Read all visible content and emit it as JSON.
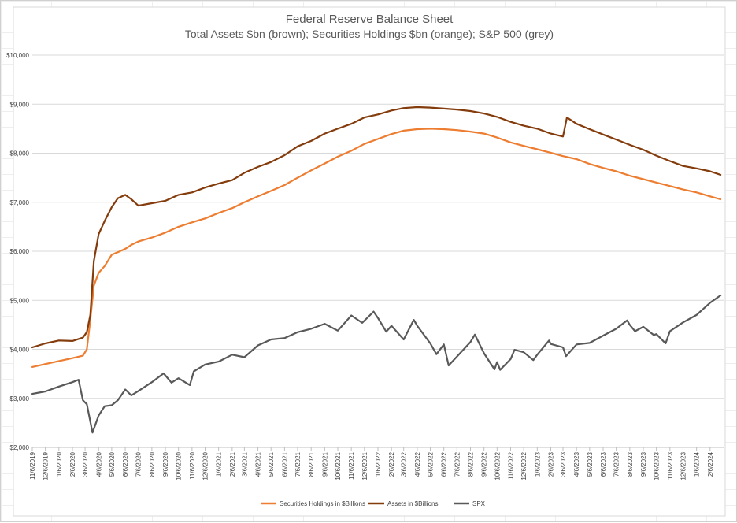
{
  "chart_data": {
    "type": "line",
    "title": "Federal Reserve Balance Sheet",
    "subtitle": "Total Assets $bn (brown); Securities Holdings $bn (orange); S&P 500 (grey)",
    "xlabel": "",
    "ylabel": "",
    "ylim": [
      2000,
      10000
    ],
    "yticks": [
      "$2,000",
      "$3,000",
      "$4,000",
      "$5,000",
      "$6,000",
      "$7,000",
      "$8,000",
      "$9,000",
      "$10,000"
    ],
    "x_ticks": [
      "11/6/2019",
      "12/6/2019",
      "1/6/2020",
      "2/6/2020",
      "3/6/2020",
      "4/6/2020",
      "5/6/2020",
      "6/6/2020",
      "7/6/2020",
      "8/6/2020",
      "9/6/2020",
      "10/6/2020",
      "11/6/2020",
      "12/6/2020",
      "1/6/2021",
      "2/6/2021",
      "3/6/2021",
      "4/6/2021",
      "5/6/2021",
      "6/6/2021",
      "7/6/2021",
      "8/6/2021",
      "9/6/2021",
      "10/6/2021",
      "11/6/2021",
      "12/6/2021",
      "1/6/2022",
      "2/6/2022",
      "3/6/2022",
      "4/6/2022",
      "5/6/2022",
      "6/6/2022",
      "7/6/2022",
      "8/6/2022",
      "9/6/2022",
      "10/6/2022",
      "11/6/2022",
      "12/6/2022",
      "1/6/2023",
      "2/6/2023",
      "3/6/2023",
      "4/6/2023",
      "5/6/2023",
      "6/6/2023",
      "7/6/2023",
      "8/6/2023",
      "9/6/2023",
      "10/6/2023",
      "11/6/2023",
      "12/6/2023",
      "1/6/2024",
      "2/6/2024"
    ],
    "grid": true,
    "legend": "bottom",
    "series": [
      {
        "name": "Securities Holdings in $Billions",
        "color": "#ED7D31",
        "points": [
          [
            "11/6/2019",
            3640
          ],
          [
            "12/6/2019",
            3700
          ],
          [
            "1/6/2020",
            3760
          ],
          [
            "2/6/2020",
            3820
          ],
          [
            "3/1/2020",
            3870
          ],
          [
            "3/10/2020",
            4000
          ],
          [
            "3/18/2020",
            4600
          ],
          [
            "3/26/2020",
            5300
          ],
          [
            "4/6/2020",
            5560
          ],
          [
            "4/20/2020",
            5700
          ],
          [
            "5/6/2020",
            5930
          ],
          [
            "5/20/2020",
            5980
          ],
          [
            "6/6/2020",
            6050
          ],
          [
            "6/20/2020",
            6130
          ],
          [
            "7/6/2020",
            6200
          ],
          [
            "8/6/2020",
            6280
          ],
          [
            "9/6/2020",
            6380
          ],
          [
            "10/6/2020",
            6500
          ],
          [
            "11/6/2020",
            6590
          ],
          [
            "12/6/2020",
            6670
          ],
          [
            "1/6/2021",
            6780
          ],
          [
            "2/6/2021",
            6880
          ],
          [
            "3/6/2021",
            7000
          ],
          [
            "4/6/2021",
            7120
          ],
          [
            "5/6/2021",
            7230
          ],
          [
            "6/6/2021",
            7350
          ],
          [
            "7/6/2021",
            7500
          ],
          [
            "8/6/2021",
            7650
          ],
          [
            "9/6/2021",
            7790
          ],
          [
            "10/6/2021",
            7930
          ],
          [
            "11/6/2021",
            8050
          ],
          [
            "12/6/2021",
            8190
          ],
          [
            "1/6/2022",
            8290
          ],
          [
            "2/6/2022",
            8390
          ],
          [
            "3/6/2022",
            8460
          ],
          [
            "4/6/2022",
            8490
          ],
          [
            "5/6/2022",
            8500
          ],
          [
            "6/6/2022",
            8490
          ],
          [
            "7/6/2022",
            8470
          ],
          [
            "8/6/2022",
            8440
          ],
          [
            "9/6/2022",
            8400
          ],
          [
            "10/6/2022",
            8320
          ],
          [
            "11/6/2022",
            8220
          ],
          [
            "12/6/2022",
            8150
          ],
          [
            "1/6/2023",
            8080
          ],
          [
            "2/6/2023",
            8010
          ],
          [
            "3/6/2023",
            7940
          ],
          [
            "4/6/2023",
            7880
          ],
          [
            "5/6/2023",
            7780
          ],
          [
            "6/6/2023",
            7700
          ],
          [
            "7/6/2023",
            7630
          ],
          [
            "8/6/2023",
            7540
          ],
          [
            "9/6/2023",
            7470
          ],
          [
            "10/6/2023",
            7400
          ],
          [
            "11/6/2023",
            7330
          ],
          [
            "12/6/2023",
            7260
          ],
          [
            "1/6/2024",
            7200
          ],
          [
            "2/6/2024",
            7120
          ],
          [
            "3/1/2024",
            7060
          ]
        ]
      },
      {
        "name": "Assets in $Billions",
        "color": "#843C0C",
        "points": [
          [
            "11/6/2019",
            4040
          ],
          [
            "12/6/2019",
            4120
          ],
          [
            "1/6/2020",
            4180
          ],
          [
            "2/6/2020",
            4170
          ],
          [
            "3/1/2020",
            4240
          ],
          [
            "3/10/2020",
            4350
          ],
          [
            "3/18/2020",
            4700
          ],
          [
            "3/26/2020",
            5800
          ],
          [
            "4/6/2020",
            6350
          ],
          [
            "4/20/2020",
            6620
          ],
          [
            "5/6/2020",
            6900
          ],
          [
            "5/20/2020",
            7080
          ],
          [
            "6/6/2020",
            7150
          ],
          [
            "6/20/2020",
            7060
          ],
          [
            "7/6/2020",
            6930
          ],
          [
            "8/6/2020",
            6980
          ],
          [
            "9/6/2020",
            7030
          ],
          [
            "10/6/2020",
            7150
          ],
          [
            "11/6/2020",
            7200
          ],
          [
            "12/6/2020",
            7300
          ],
          [
            "1/6/2021",
            7380
          ],
          [
            "2/6/2021",
            7450
          ],
          [
            "3/6/2021",
            7600
          ],
          [
            "4/6/2021",
            7720
          ],
          [
            "5/6/2021",
            7820
          ],
          [
            "6/6/2021",
            7960
          ],
          [
            "7/6/2021",
            8140
          ],
          [
            "8/6/2021",
            8250
          ],
          [
            "9/6/2021",
            8400
          ],
          [
            "10/6/2021",
            8500
          ],
          [
            "11/6/2021",
            8600
          ],
          [
            "12/6/2021",
            8730
          ],
          [
            "1/6/2022",
            8790
          ],
          [
            "2/6/2022",
            8870
          ],
          [
            "3/6/2022",
            8920
          ],
          [
            "4/6/2022",
            8940
          ],
          [
            "5/6/2022",
            8930
          ],
          [
            "6/6/2022",
            8910
          ],
          [
            "7/6/2022",
            8890
          ],
          [
            "8/6/2022",
            8860
          ],
          [
            "9/6/2022",
            8810
          ],
          [
            "10/6/2022",
            8740
          ],
          [
            "11/6/2022",
            8640
          ],
          [
            "12/6/2022",
            8560
          ],
          [
            "1/6/2023",
            8500
          ],
          [
            "2/6/2023",
            8400
          ],
          [
            "3/6/2023",
            8340
          ],
          [
            "3/15/2023",
            8730
          ],
          [
            "4/6/2023",
            8600
          ],
          [
            "5/6/2023",
            8490
          ],
          [
            "6/6/2023",
            8380
          ],
          [
            "7/6/2023",
            8280
          ],
          [
            "8/6/2023",
            8170
          ],
          [
            "9/6/2023",
            8070
          ],
          [
            "10/6/2023",
            7950
          ],
          [
            "11/6/2023",
            7840
          ],
          [
            "12/6/2023",
            7740
          ],
          [
            "1/6/2024",
            7690
          ],
          [
            "2/6/2024",
            7630
          ],
          [
            "3/1/2024",
            7560
          ]
        ]
      },
      {
        "name": "SPX",
        "color": "#595959",
        "points": [
          [
            "11/6/2019",
            3090
          ],
          [
            "12/6/2019",
            3140
          ],
          [
            "1/6/2020",
            3240
          ],
          [
            "2/6/2020",
            3330
          ],
          [
            "2/20/2020",
            3380
          ],
          [
            "3/1/2020",
            2960
          ],
          [
            "3/10/2020",
            2880
          ],
          [
            "3/23/2020",
            2300
          ],
          [
            "4/6/2020",
            2650
          ],
          [
            "4/20/2020",
            2840
          ],
          [
            "5/6/2020",
            2860
          ],
          [
            "5/20/2020",
            2960
          ],
          [
            "6/6/2020",
            3180
          ],
          [
            "6/20/2020",
            3060
          ],
          [
            "7/6/2020",
            3150
          ],
          [
            "8/6/2020",
            3330
          ],
          [
            "9/2/2020",
            3510
          ],
          [
            "9/20/2020",
            3320
          ],
          [
            "10/6/2020",
            3410
          ],
          [
            "11/1/2020",
            3270
          ],
          [
            "11/10/2020",
            3550
          ],
          [
            "12/6/2020",
            3690
          ],
          [
            "1/6/2021",
            3750
          ],
          [
            "2/6/2021",
            3890
          ],
          [
            "3/6/2021",
            3840
          ],
          [
            "4/6/2021",
            4080
          ],
          [
            "5/6/2021",
            4200
          ],
          [
            "6/6/2021",
            4230
          ],
          [
            "7/6/2021",
            4350
          ],
          [
            "8/6/2021",
            4420
          ],
          [
            "9/6/2021",
            4520
          ],
          [
            "10/6/2021",
            4380
          ],
          [
            "11/6/2021",
            4690
          ],
          [
            "12/1/2021",
            4540
          ],
          [
            "12/27/2021",
            4770
          ],
          [
            "1/6/2022",
            4640
          ],
          [
            "1/25/2022",
            4360
          ],
          [
            "2/6/2022",
            4480
          ],
          [
            "3/6/2022",
            4200
          ],
          [
            "3/29/2022",
            4600
          ],
          [
            "4/6/2022",
            4480
          ],
          [
            "5/6/2022",
            4120
          ],
          [
            "5/20/2022",
            3900
          ],
          [
            "6/6/2022",
            4100
          ],
          [
            "6/17/2022",
            3670
          ],
          [
            "7/6/2022",
            3850
          ],
          [
            "8/6/2022",
            4150
          ],
          [
            "8/16/2022",
            4300
          ],
          [
            "9/6/2022",
            3920
          ],
          [
            "9/30/2022",
            3590
          ],
          [
            "10/6/2022",
            3740
          ],
          [
            "10/13/2022",
            3580
          ],
          [
            "11/6/2022",
            3800
          ],
          [
            "11/15/2022",
            3990
          ],
          [
            "12/6/2022",
            3940
          ],
          [
            "12/28/2022",
            3780
          ],
          [
            "1/6/2023",
            3890
          ],
          [
            "2/2/2023",
            4180
          ],
          [
            "2/6/2023",
            4110
          ],
          [
            "3/6/2023",
            4040
          ],
          [
            "3/13/2023",
            3860
          ],
          [
            "4/6/2023",
            4100
          ],
          [
            "5/6/2023",
            4130
          ],
          [
            "6/6/2023",
            4280
          ],
          [
            "7/6/2023",
            4420
          ],
          [
            "7/31/2023",
            4590
          ],
          [
            "8/6/2023",
            4500
          ],
          [
            "8/18/2023",
            4370
          ],
          [
            "9/6/2023",
            4460
          ],
          [
            "9/30/2023",
            4290
          ],
          [
            "10/6/2023",
            4310
          ],
          [
            "10/27/2023",
            4120
          ],
          [
            "11/6/2023",
            4370
          ],
          [
            "12/6/2023",
            4550
          ],
          [
            "1/6/2024",
            4700
          ],
          [
            "2/6/2024",
            4950
          ],
          [
            "3/1/2024",
            5100
          ]
        ]
      }
    ]
  }
}
